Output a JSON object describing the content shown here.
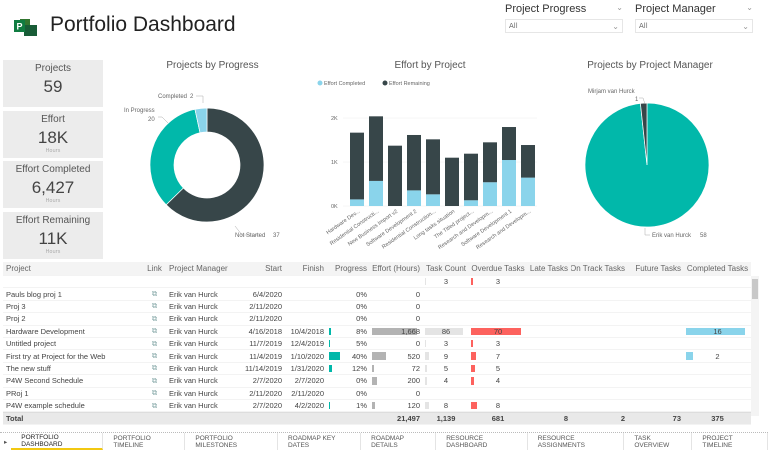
{
  "header": {
    "title": "Portfolio Dashboard",
    "logo_icon": "project-logo-icon"
  },
  "slicers": [
    {
      "label": "Project Progress",
      "value": "All"
    },
    {
      "label": "Project Manager",
      "value": "All"
    }
  ],
  "kpis": [
    {
      "title": "Projects",
      "value": "59",
      "unit": ""
    },
    {
      "title": "Effort",
      "value": "18K",
      "unit": "Hours"
    },
    {
      "title": "Effort Completed",
      "value": "6,427",
      "unit": "Hours"
    },
    {
      "title": "Effort Remaining",
      "value": "11K",
      "unit": "Hours"
    }
  ],
  "colors": {
    "dark": "#374649",
    "teal": "#01B8AA",
    "light_blue": "#8AD4EB",
    "red": "#FD625E",
    "grey": "#B3B3B3",
    "accent": "#F2C811"
  },
  "chart_data": [
    {
      "type": "pie",
      "title": "Projects by Progress",
      "donut": true,
      "slices": [
        {
          "label": "Not Started",
          "value": 37,
          "color": "#374649"
        },
        {
          "label": "In Progress",
          "value": 20,
          "color": "#01B8AA"
        },
        {
          "label": "Completed",
          "value": 2,
          "color": "#8AD4EB"
        }
      ]
    },
    {
      "type": "bar",
      "stacked": true,
      "title": "Effort by Project",
      "legend": "top-left",
      "ylim": [
        0,
        2000
      ],
      "yticks": [
        "0K",
        "1K",
        "2K"
      ],
      "categories": [
        "Hardware Dev...",
        "Residential Constructi...",
        "New Business Import v2",
        "Software Development 2",
        "Residential Construction...",
        "Long tasks situation",
        "The Titled project...",
        "Research and Developm...",
        "Software Development 1",
        "Research and Developm..."
      ],
      "series": [
        {
          "name": "Effort Completed",
          "color": "#8AD4EB",
          "values": [
            150,
            570,
            0,
            355,
            265,
            0,
            130,
            540,
            1045,
            645
          ]
        },
        {
          "name": "Effort Remaining",
          "color": "#374649",
          "values": [
            1517,
            1468,
            1371,
            1259,
            1250,
            1098,
            1059,
            907,
            750,
            741
          ]
        }
      ]
    },
    {
      "type": "pie",
      "title": "Projects by Project Manager",
      "slices": [
        {
          "label": "Erik van Hurck",
          "value": 58,
          "color": "#01B8AA"
        },
        {
          "label": "Mirjam van Hurck",
          "value": 1,
          "color": "#374649"
        }
      ]
    }
  ],
  "table": {
    "columns": [
      "Project",
      "Link",
      "Project Manager",
      "Start",
      "Finish",
      "Progress",
      "Effort (Hours)",
      "Task Count",
      "Overdue Tasks",
      "Late Tasks",
      "On Track Tasks",
      "Future Tasks",
      "Completed Tasks"
    ],
    "rows": [
      [
        "",
        "",
        "",
        "",
        "",
        "",
        "",
        "3",
        "3",
        "",
        "",
        "",
        ""
      ],
      [
        "Pauls blog proj 1",
        "link",
        "Erik van Hurck",
        "6/4/2020",
        "",
        "0%",
        "0",
        "",
        "",
        "",
        "",
        "",
        ""
      ],
      [
        "Proj 3",
        "link",
        "Erik van Hurck",
        "2/11/2020",
        "",
        "0%",
        "0",
        "",
        "",
        "",
        "",
        "",
        ""
      ],
      [
        "Proj 2",
        "link",
        "Erik van Hurck",
        "2/11/2020",
        "",
        "0%",
        "0",
        "",
        "",
        "",
        "",
        "",
        ""
      ],
      [
        "Hardware Development",
        "link",
        "Erik van Hurck",
        "4/16/2018",
        "10/4/2018",
        "8%",
        "1,668",
        "86",
        "70",
        "",
        "",
        "",
        "16"
      ],
      [
        "Untitled project",
        "link",
        "Erik van Hurck",
        "11/7/2019",
        "12/4/2019",
        "5%",
        "0",
        "3",
        "3",
        "",
        "",
        "",
        ""
      ],
      [
        "First try at Project for the Web",
        "link",
        "Erik van Hurck",
        "11/4/2019",
        "1/10/2020",
        "40%",
        "520",
        "9",
        "7",
        "",
        "",
        "",
        "2"
      ],
      [
        "The new stuff",
        "link",
        "Erik van Hurck",
        "11/14/2019",
        "1/31/2020",
        "12%",
        "72",
        "5",
        "5",
        "",
        "",
        "",
        ""
      ],
      [
        "P4W Second Schedule",
        "link",
        "Erik van Hurck",
        "2/7/2020",
        "2/7/2020",
        "0%",
        "200",
        "4",
        "4",
        "",
        "",
        "",
        ""
      ],
      [
        "PRoj 1",
        "link",
        "Erik van Hurck",
        "2/11/2020",
        "2/11/2020",
        "0%",
        "0",
        "",
        "",
        "",
        "",
        "",
        ""
      ],
      [
        "P4W example schedule",
        "link",
        "Erik van Hurck",
        "2/7/2020",
        "4/2/2020",
        "1%",
        "120",
        "8",
        "8",
        "",
        "",
        "",
        ""
      ]
    ],
    "total": [
      "Total",
      "",
      "",
      "",
      "",
      "",
      "21,497",
      "1,139",
      "681",
      "8",
      "2",
      "73",
      "375"
    ]
  },
  "tabs": [
    "PORTFOLIO DASHBOARD",
    "PORTFOLIO TIMELINE",
    "PORTFOLIO MILESTONES",
    "ROADMAP KEY DATES",
    "ROADMAP DETAILS",
    "RESOURCE DASHBOARD",
    "RESOURCE ASSIGNMENTS",
    "TASK OVERVIEW",
    "PROJECT TIMELINE"
  ],
  "active_tab": "PORTFOLIO DASHBOARD"
}
